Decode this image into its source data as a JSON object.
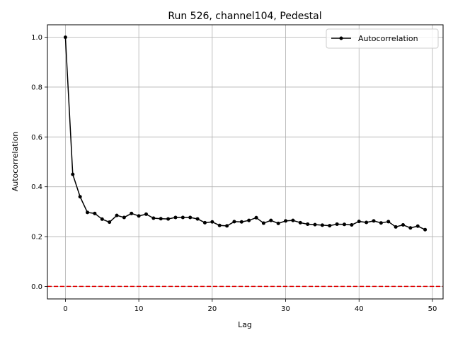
{
  "chart_data": {
    "type": "line",
    "title": "Run 526, channel104, Pedestal",
    "xlabel": "Lag",
    "ylabel": "Autocorrelation",
    "xlim": [
      -2.45,
      51.45
    ],
    "ylim": [
      -0.05,
      1.05
    ],
    "x_ticks": [
      0,
      10,
      20,
      30,
      40,
      50
    ],
    "y_ticks": [
      0.0,
      0.2,
      0.4,
      0.6,
      0.8,
      1.0
    ],
    "x_tick_labels": [
      "0",
      "10",
      "20",
      "30",
      "40",
      "50"
    ],
    "y_tick_labels": [
      "0.0",
      "0.2",
      "0.4",
      "0.6",
      "0.8",
      "1.0"
    ],
    "grid": true,
    "legend_position": "top-right",
    "series": [
      {
        "name": "Autocorrelation",
        "color": "#000000",
        "marker": "circle",
        "x": [
          0,
          1,
          2,
          3,
          4,
          5,
          6,
          7,
          8,
          9,
          10,
          11,
          12,
          13,
          14,
          15,
          16,
          17,
          18,
          19,
          20,
          21,
          22,
          23,
          24,
          25,
          26,
          27,
          28,
          29,
          30,
          31,
          32,
          33,
          34,
          35,
          36,
          37,
          38,
          39,
          40,
          41,
          42,
          43,
          44,
          45,
          46,
          47,
          48,
          49
        ],
        "values": [
          1.0,
          0.45,
          0.36,
          0.297,
          0.293,
          0.27,
          0.258,
          0.285,
          0.277,
          0.293,
          0.283,
          0.29,
          0.274,
          0.272,
          0.271,
          0.277,
          0.277,
          0.277,
          0.271,
          0.256,
          0.259,
          0.245,
          0.243,
          0.26,
          0.259,
          0.265,
          0.276,
          0.254,
          0.265,
          0.253,
          0.263,
          0.265,
          0.256,
          0.25,
          0.248,
          0.246,
          0.244,
          0.25,
          0.249,
          0.247,
          0.261,
          0.257,
          0.263,
          0.255,
          0.26,
          0.239,
          0.247,
          0.235,
          0.242,
          0.228
        ]
      }
    ],
    "reference_line": {
      "y": 0,
      "color": "#e00000",
      "style": "dashed"
    }
  }
}
